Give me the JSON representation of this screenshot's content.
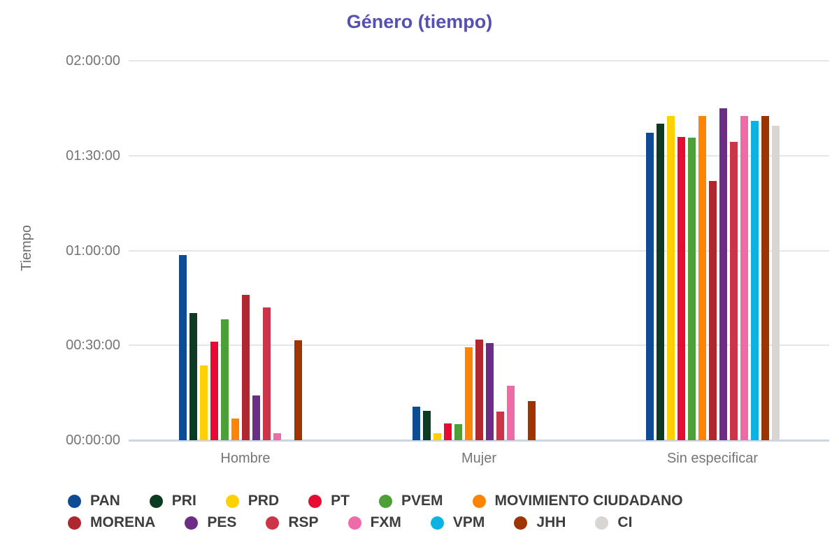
{
  "chart_data": {
    "type": "bar",
    "title": "Género (tiempo)",
    "xlabel": "",
    "ylabel": "Tiempo",
    "categories": [
      "Hombre",
      "Mujer",
      "Sin especificar"
    ],
    "y_ticks": [
      "00:00:00",
      "00:30:00",
      "01:00:00",
      "01:30:00",
      "02:00:00"
    ],
    "ylim_seconds": [
      0,
      7200
    ],
    "grid": true,
    "legend_position": "bottom",
    "colors": {
      "title": "#5650b2",
      "axis_text": "#757575",
      "gridline": "#e6e6e6",
      "baseline": "#ccd5e6",
      "legend_text": "#3d3d3d"
    },
    "series": [
      {
        "name": "PAN",
        "color": "#0d4c94",
        "values_seconds": [
          3510,
          635,
          5840
        ],
        "values_hms": [
          "00:58:30",
          "00:10:35",
          "01:37:20"
        ]
      },
      {
        "name": "PRI",
        "color": "#0c3b24",
        "values_seconds": [
          2415,
          555,
          6000
        ],
        "values_hms": [
          "00:40:15",
          "00:09:15",
          "01:40:00"
        ]
      },
      {
        "name": "PRD",
        "color": "#ffd105",
        "values_seconds": [
          1420,
          130,
          6150
        ],
        "values_hms": [
          "00:23:40",
          "00:02:10",
          "01:42:30"
        ]
      },
      {
        "name": "PT",
        "color": "#e60b32",
        "values_seconds": [
          1870,
          320,
          5760
        ],
        "values_hms": [
          "00:31:10",
          "00:05:20",
          "01:36:00"
        ]
      },
      {
        "name": "PVEM",
        "color": "#4d9f38",
        "values_seconds": [
          2295,
          300,
          5745
        ],
        "values_hms": [
          "00:38:15",
          "00:05:00",
          "01:35:45"
        ]
      },
      {
        "name": "MOVIMIENTO CIUDADANO",
        "color": "#fe8405",
        "values_seconds": [
          410,
          1760,
          6150
        ],
        "values_hms": [
          "00:06:50",
          "00:29:20",
          "01:42:30"
        ]
      },
      {
        "name": "MORENA",
        "color": "#b0282f",
        "values_seconds": [
          2760,
          1905,
          4920
        ],
        "values_hms": [
          "00:46:00",
          "00:31:45",
          "01:22:00"
        ]
      },
      {
        "name": "PES",
        "color": "#6b2d85",
        "values_seconds": [
          845,
          1840,
          6300
        ],
        "values_hms": [
          "00:14:05",
          "00:30:40",
          "01:45:00"
        ]
      },
      {
        "name": "RSP",
        "color": "#cb3449",
        "values_seconds": [
          2520,
          540,
          5660
        ],
        "values_hms": [
          "00:42:00",
          "00:09:00",
          "01:34:20"
        ]
      },
      {
        "name": "FXM",
        "color": "#ee6ba8",
        "values_seconds": [
          130,
          1030,
          6150
        ],
        "values_hms": [
          "00:02:10",
          "00:17:10",
          "01:42:30"
        ]
      },
      {
        "name": "VPM",
        "color": "#0cb3e2",
        "values_seconds": [
          0,
          0,
          6060
        ],
        "values_hms": [
          "00:00:00",
          "00:00:00",
          "01:41:00"
        ]
      },
      {
        "name": "JHH",
        "color": "#9e3400",
        "values_seconds": [
          1895,
          740,
          6150
        ],
        "values_hms": [
          "00:31:35",
          "00:12:20",
          "01:42:30"
        ]
      },
      {
        "name": "CI",
        "color": "#d8d5d3",
        "values_seconds": [
          0,
          0,
          5970
        ],
        "values_hms": [
          "00:00:00",
          "00:00:00",
          "01:39:30"
        ]
      }
    ]
  }
}
